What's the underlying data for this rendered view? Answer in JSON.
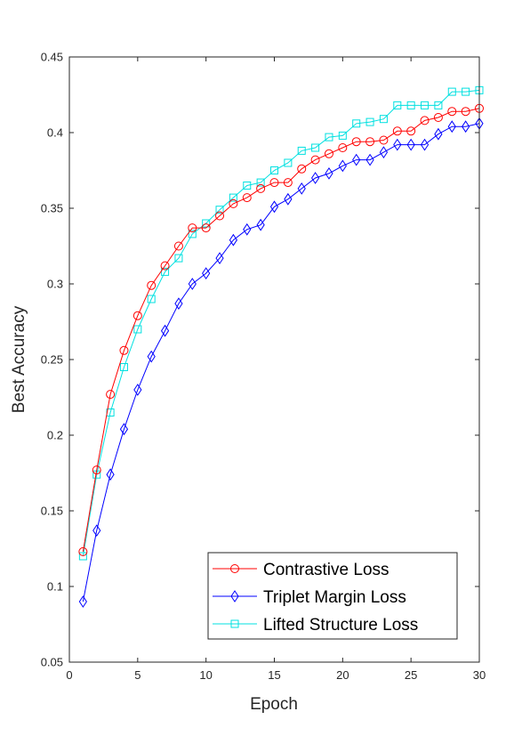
{
  "chart_data": {
    "type": "line",
    "xlabel": "Epoch",
    "ylabel": "Best Accuracy",
    "xlim": [
      0,
      30
    ],
    "ylim": [
      0.05,
      0.45
    ],
    "xticks": [
      "0",
      "5",
      "10",
      "15",
      "20",
      "25",
      "30"
    ],
    "yticks": [
      "0.05",
      "0.1",
      "0.15",
      "0.2",
      "0.25",
      "0.3",
      "0.35",
      "0.4",
      "0.45"
    ],
    "grid": false,
    "legend_position": "bottom-right",
    "x": [
      1,
      2,
      3,
      4,
      5,
      6,
      7,
      8,
      9,
      10,
      11,
      12,
      13,
      14,
      15,
      16,
      17,
      18,
      19,
      20,
      21,
      22,
      23,
      24,
      25,
      26,
      27,
      28,
      29,
      30
    ],
    "series": [
      {
        "name": "Contrastive Loss",
        "color": "#ff0000",
        "marker": "circle",
        "values": [
          0.123,
          0.177,
          0.227,
          0.256,
          0.279,
          0.299,
          0.312,
          0.325,
          0.337,
          0.337,
          0.345,
          0.353,
          0.357,
          0.363,
          0.367,
          0.367,
          0.376,
          0.382,
          0.386,
          0.39,
          0.394,
          0.394,
          0.395,
          0.401,
          0.401,
          0.408,
          0.41,
          0.414,
          0.414,
          0.416
        ]
      },
      {
        "name": "Triplet Margin Loss",
        "color": "#0000ff",
        "marker": "diamond",
        "values": [
          0.09,
          0.137,
          0.174,
          0.204,
          0.23,
          0.252,
          0.269,
          0.287,
          0.3,
          0.307,
          0.317,
          0.329,
          0.336,
          0.339,
          0.351,
          0.356,
          0.363,
          0.37,
          0.373,
          0.378,
          0.382,
          0.382,
          0.387,
          0.392,
          0.392,
          0.392,
          0.399,
          0.404,
          0.404,
          0.406
        ]
      },
      {
        "name": "Lifted Structure Loss",
        "color": "#00e0e0",
        "marker": "square",
        "values": [
          0.12,
          0.174,
          0.215,
          0.245,
          0.27,
          0.29,
          0.308,
          0.317,
          0.333,
          0.34,
          0.349,
          0.357,
          0.365,
          0.367,
          0.375,
          0.38,
          0.388,
          0.39,
          0.397,
          0.398,
          0.406,
          0.407,
          0.409,
          0.418,
          0.418,
          0.418,
          0.418,
          0.427,
          0.427,
          0.428
        ]
      }
    ]
  }
}
